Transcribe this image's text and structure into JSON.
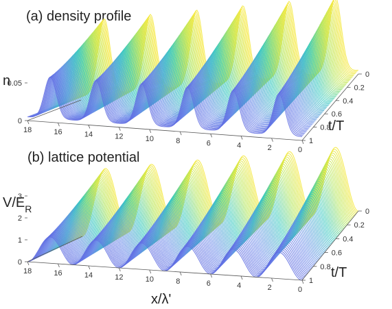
{
  "chart_data": [
    {
      "type": "surface",
      "title": "(a) density profile",
      "xlabel": "",
      "ylabel": "t/T",
      "zlabel": "n",
      "xlim": [
        0,
        18
      ],
      "ylim": [
        0,
        1
      ],
      "zlim": [
        0,
        0.1
      ],
      "x_ticks": [
        "0",
        "2",
        "4",
        "6",
        "8",
        "10",
        "12",
        "14",
        "16",
        "18"
      ],
      "y_ticks": [
        "0",
        "0.2",
        "0.4",
        "0.6",
        "0.8",
        "1"
      ],
      "z_ticks": [
        "0",
        "0.05"
      ],
      "peaks_x": [
        1.5,
        4.5,
        7.5,
        10.5,
        13.5,
        16.5
      ],
      "peak_value": 0.1,
      "baseline_value": 0.005,
      "colormap": [
        "#4b3fd6",
        "#6d8bea",
        "#36c9c0",
        "#b5e65a",
        "#f5e73a"
      ]
    },
    {
      "type": "surface",
      "title": "(b) lattice potential",
      "xlabel": "x/λ'",
      "ylabel": "t/T",
      "zlabel_main": "V/E",
      "zlabel_sub": "R",
      "xlim": [
        0,
        18
      ],
      "ylim": [
        0,
        1
      ],
      "zlim": [
        0,
        3
      ],
      "x_ticks": [
        "0",
        "2",
        "4",
        "6",
        "8",
        "10",
        "12",
        "14",
        "16",
        "18"
      ],
      "y_ticks": [
        "0",
        "0.2",
        "0.4",
        "0.6",
        "0.8",
        "1"
      ],
      "z_ticks": [
        "0",
        "1",
        "2",
        "3"
      ],
      "peaks_x": [
        1.5,
        4.5,
        7.5,
        10.5,
        13.5,
        16.5
      ],
      "peak_value": 3,
      "well_value": 0,
      "colormap": [
        "#4b3fd6",
        "#6d8bea",
        "#36c9c0",
        "#b5e65a",
        "#f5e73a"
      ]
    }
  ]
}
